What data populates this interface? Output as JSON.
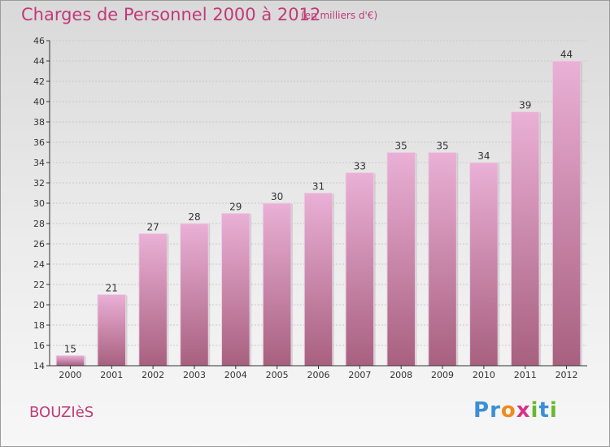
{
  "title": "Charges de Personnel 2000 à 2012",
  "subtitle": "(en milliers d'€)",
  "commune": "BOUZIèS",
  "logo": {
    "text": "Proxiti",
    "letters": [
      {
        "ch": "P",
        "color": "#3a8fd6"
      },
      {
        "ch": "r",
        "color": "#3a8fd6"
      },
      {
        "ch": "o",
        "color": "#f08a1c"
      },
      {
        "ch": "x",
        "color": "#d8328a"
      },
      {
        "ch": "i",
        "color": "#6ab82e"
      },
      {
        "ch": "t",
        "color": "#3a8fd6"
      },
      {
        "ch": "i",
        "color": "#6ab82e"
      }
    ]
  },
  "colors": {
    "title": "#c03a78",
    "bar_top": "#eab0d6",
    "bar_bottom": "#a8607f",
    "bar_edge": "#e8d2e0",
    "grid": "#c8c8c8",
    "axis": "#333333"
  },
  "chart_data": {
    "type": "bar",
    "title": "Charges de Personnel 2000 à 2012",
    "subtitle": "(en milliers d'€)",
    "categories": [
      "2000",
      "2001",
      "2002",
      "2003",
      "2004",
      "2005",
      "2006",
      "2007",
      "2008",
      "2009",
      "2010",
      "2011",
      "2012"
    ],
    "values": [
      15,
      21,
      27,
      28,
      29,
      30,
      31,
      33,
      35,
      35,
      34,
      39,
      44
    ],
    "ylim": [
      14,
      46
    ],
    "yticks": [
      14,
      16,
      18,
      20,
      22,
      24,
      26,
      28,
      30,
      32,
      34,
      36,
      38,
      40,
      42,
      44,
      46
    ],
    "grid": true,
    "data_labels": true,
    "xlabel": "",
    "ylabel": ""
  }
}
